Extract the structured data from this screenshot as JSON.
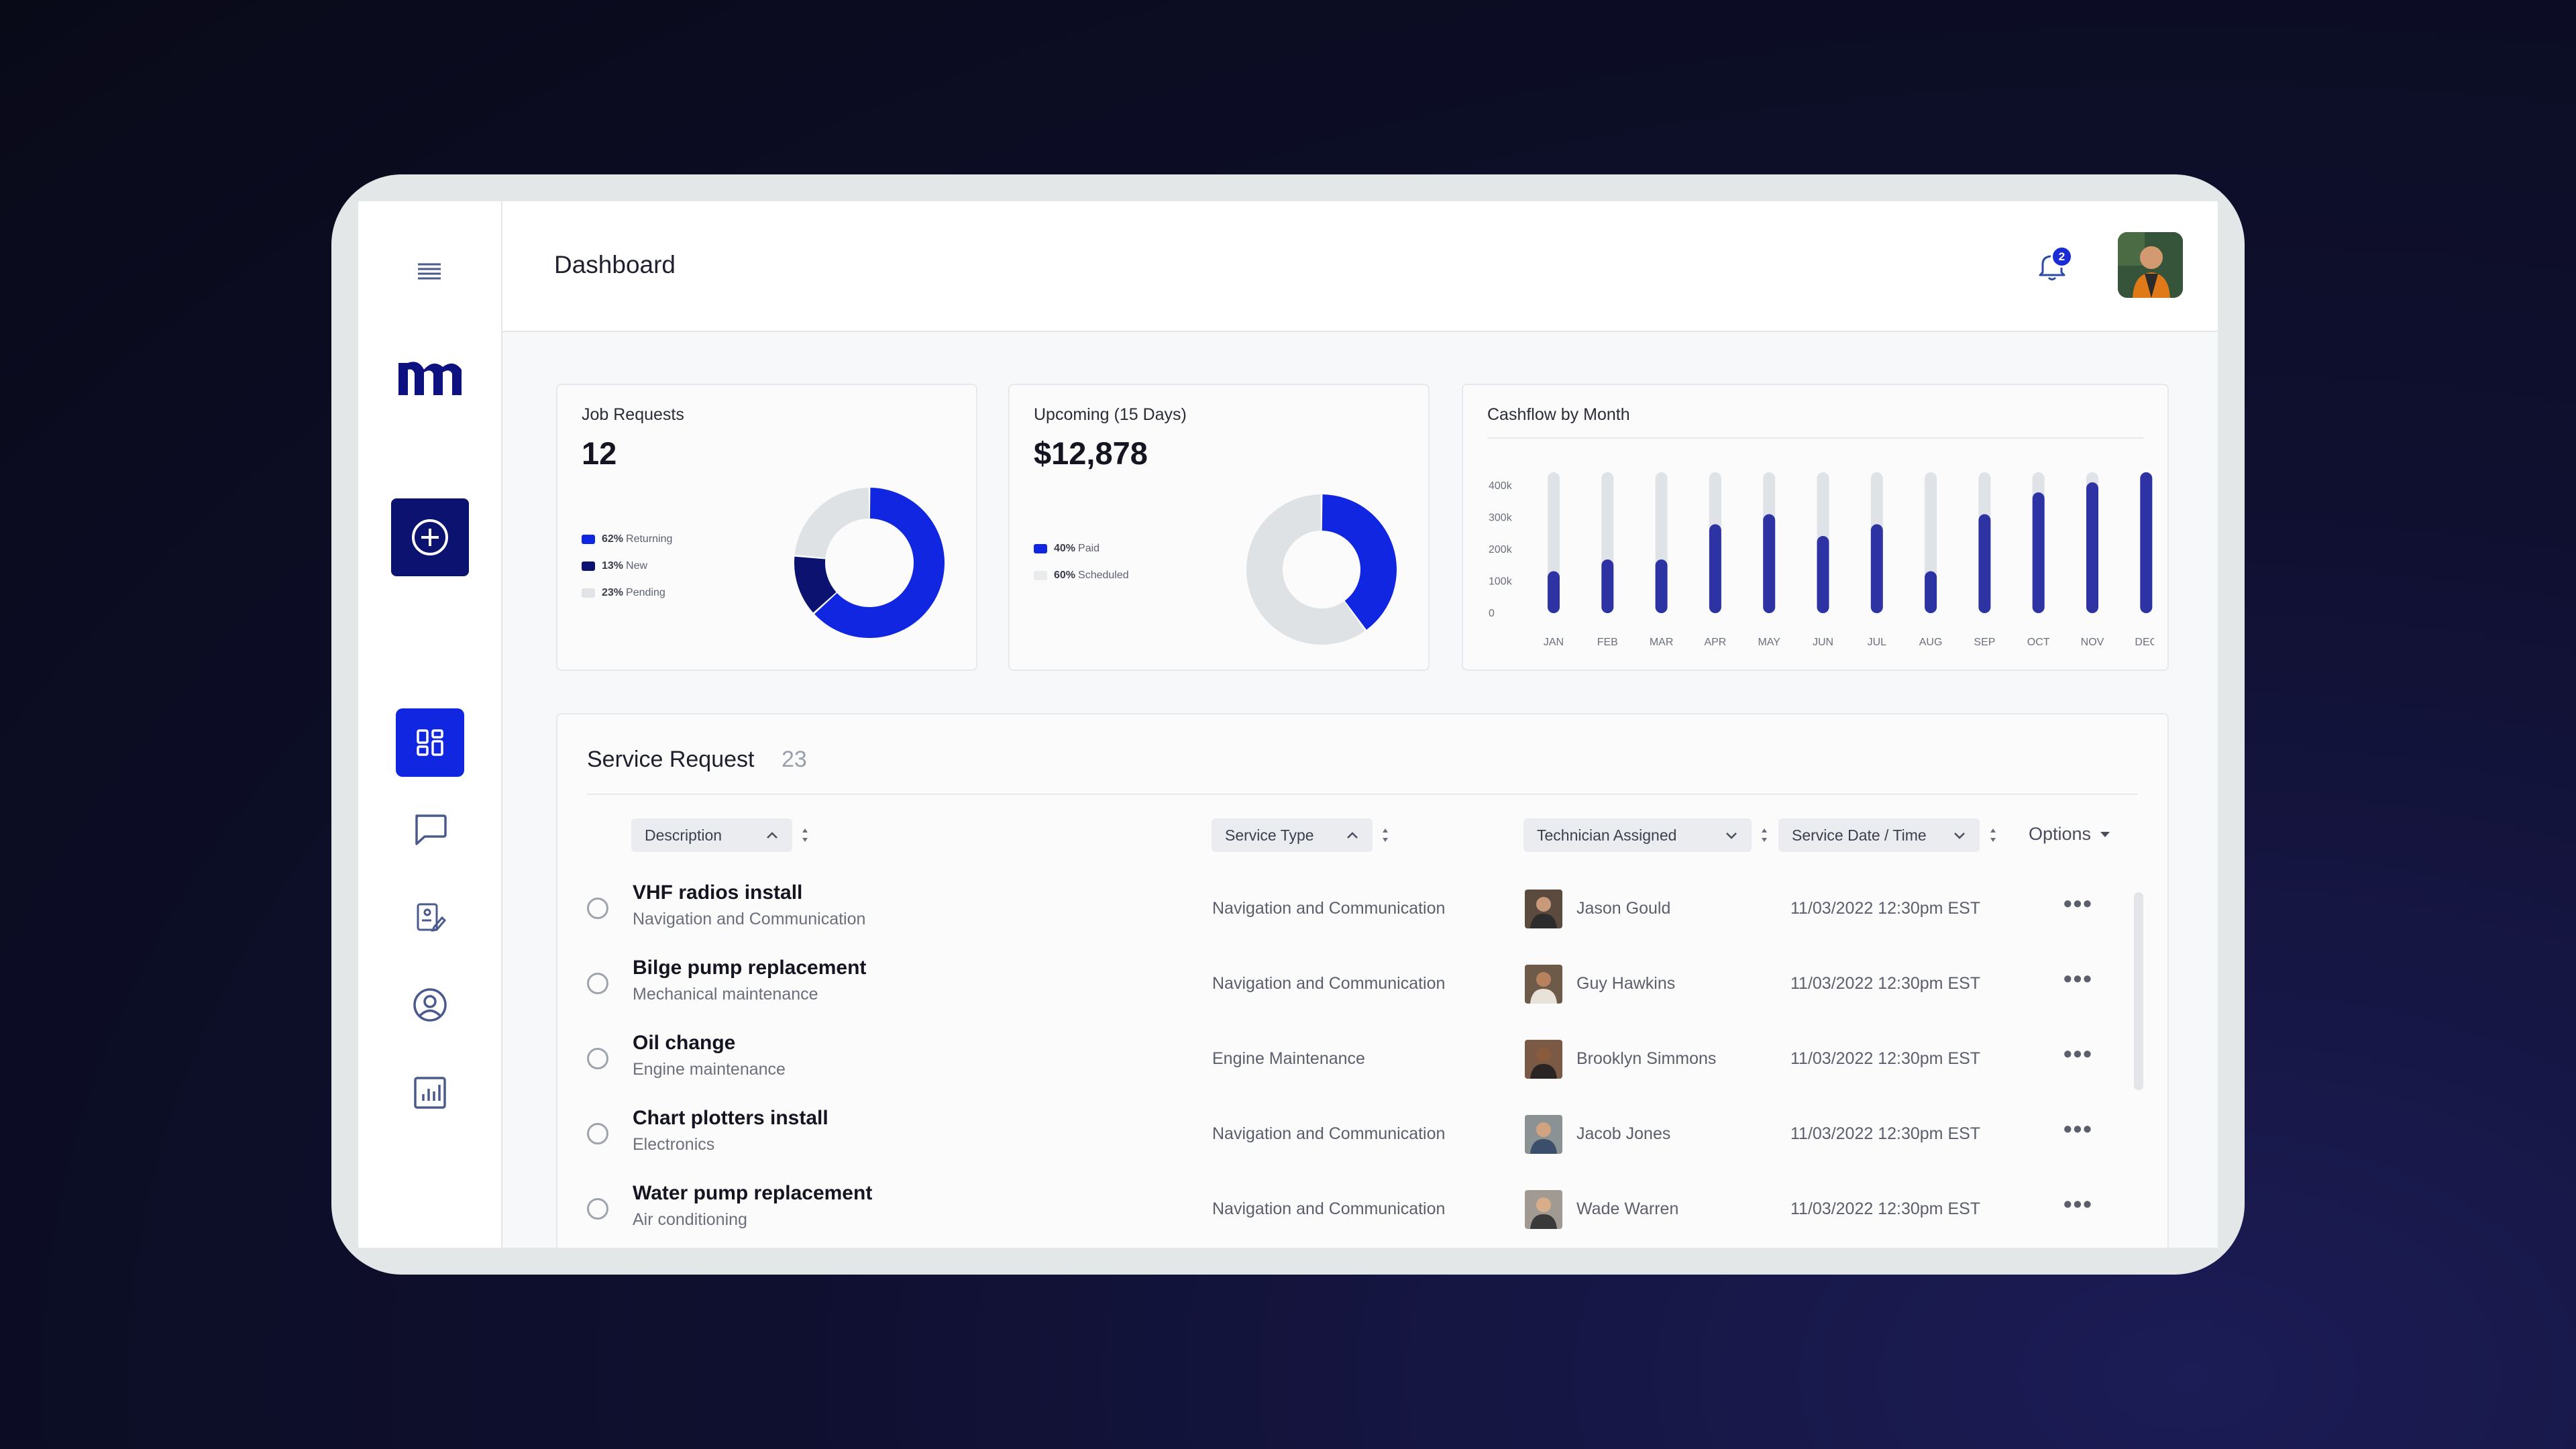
{
  "header": {
    "title": "Dashboard",
    "notification_count": "2"
  },
  "sidebar": {
    "items": [
      {
        "name": "dashboard",
        "icon": "grid-icon"
      },
      {
        "name": "messages",
        "icon": "chat-icon"
      },
      {
        "name": "jobs",
        "icon": "clipboard-edit-icon"
      },
      {
        "name": "profile",
        "icon": "user-circle-icon"
      },
      {
        "name": "reports",
        "icon": "bar-chart-icon"
      }
    ],
    "add_icon": "plus-circle-icon",
    "menu_icon": "hamburger-icon"
  },
  "cards": {
    "job_requests": {
      "title": "Job Requests",
      "value": "12",
      "legend": [
        {
          "pct": "62%",
          "label": "Returning",
          "color": "#1026e0"
        },
        {
          "pct": "13%",
          "label": "New",
          "color": "#0b1270"
        },
        {
          "pct": "23%",
          "label": "Pending",
          "color": "#e1e3e6"
        }
      ]
    },
    "upcoming": {
      "title": "Upcoming (15 Days)",
      "value": "$12,878",
      "legend": [
        {
          "pct": "40%",
          "label": "Paid",
          "color": "#1026e0"
        },
        {
          "pct": "60%",
          "label": "Scheduled",
          "color": "#e9ebed"
        }
      ]
    },
    "cashflow": {
      "title": "Cashflow by Month"
    }
  },
  "chart_data": [
    {
      "type": "pie",
      "title": "Job Requests",
      "categories": [
        "Returning",
        "New",
        "Pending"
      ],
      "values": [
        62,
        13,
        23
      ],
      "colors": [
        "#1026e0",
        "#0b1270",
        "#dfe2e5"
      ]
    },
    {
      "type": "pie",
      "title": "Upcoming (15 Days)",
      "categories": [
        "Paid",
        "Scheduled"
      ],
      "values": [
        40,
        60
      ],
      "colors": [
        "#1026e0",
        "#dfe2e5"
      ]
    },
    {
      "type": "bar",
      "title": "Cashflow by Month",
      "categories": [
        "JAN",
        "FEB",
        "MAR",
        "APR",
        "MAY",
        "JUN",
        "JUL",
        "AUG",
        "SEP",
        "OCT",
        "NOV",
        "DEC"
      ],
      "values": [
        125000,
        160000,
        160000,
        265000,
        295000,
        230000,
        265000,
        125000,
        295000,
        360000,
        390000,
        420000
      ],
      "max": 420000,
      "y_ticks": [
        "400k",
        "300k",
        "200k",
        "100k",
        "0"
      ],
      "y_tick_values": [
        400000,
        300000,
        200000,
        100000,
        0
      ],
      "bar_color": "#2e33a3",
      "track_color": "#dfe2e6"
    }
  ],
  "service": {
    "title": "Service Request",
    "count": "23",
    "columns": {
      "description": "Description",
      "service_type": "Service Type",
      "technician": "Technician Assigned",
      "date": "Service Date / Time",
      "options": "Options"
    },
    "rows": [
      {
        "title": "VHF radios install",
        "subtitle": "Navigation and Communication",
        "type": "Navigation and Communication",
        "tech": "Jason Gould",
        "date": "11/03/2022 12:30pm EST"
      },
      {
        "title": "Bilge pump replacement",
        "subtitle": "Mechanical maintenance",
        "type": "Navigation and Communication",
        "tech": "Guy Hawkins",
        "date": "11/03/2022 12:30pm EST"
      },
      {
        "title": "Oil change",
        "subtitle": "Engine maintenance",
        "type": "Engine Maintenance",
        "tech": "Brooklyn Simmons",
        "date": "11/03/2022 12:30pm EST"
      },
      {
        "title": "Chart plotters install",
        "subtitle": "Electronics",
        "type": "Navigation and Communication",
        "tech": "Jacob Jones",
        "date": "11/03/2022 12:30pm EST"
      },
      {
        "title": "Water pump replacement",
        "subtitle": "Air conditioning",
        "type": "Navigation and Communication",
        "tech": "Wade Warren",
        "date": "11/03/2022 12:30pm EST"
      }
    ]
  }
}
